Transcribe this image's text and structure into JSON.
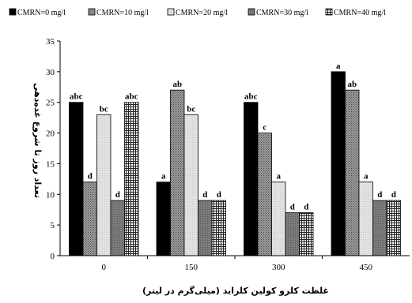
{
  "chart_data": {
    "type": "bar",
    "title": "",
    "xlabel": "غلظت کلرو کولین کلراید (میلی‌گرم در لیتر)",
    "ylabel": "تعداد روز تا شروع غده‌دهی",
    "ylim": [
      0,
      35
    ],
    "yticks": [
      "0",
      "5",
      "10",
      "15",
      "20",
      "25",
      "30",
      "35"
    ],
    "categories": [
      "0",
      "150",
      "300",
      "450"
    ],
    "legend_position": "top",
    "grid": false,
    "series": [
      {
        "name": "CMRN=0 mg/l",
        "color": "#000000",
        "pattern": "solid",
        "values": [
          25,
          12,
          25,
          30
        ],
        "labels": [
          "abc",
          "a",
          "abc",
          "a"
        ]
      },
      {
        "name": "CMRN=10 mg/l",
        "color": "#8c8c8c",
        "pattern": "dots-dark",
        "values": [
          12,
          27,
          20,
          27
        ],
        "labels": [
          "d",
          "ab",
          "c",
          "ab"
        ]
      },
      {
        "name": "CMRN=20 mg/l",
        "color": "#dcdcdc",
        "pattern": "light",
        "values": [
          23,
          23,
          12,
          12
        ],
        "labels": [
          "bc",
          "bc",
          "a",
          "a"
        ]
      },
      {
        "name": "CMRN=30 mg/l",
        "color": "#6e6e6e",
        "pattern": "dark-gray",
        "values": [
          9,
          9,
          7,
          9
        ],
        "labels": [
          "d",
          "d",
          "d",
          "d"
        ]
      },
      {
        "name": "CMRN=40 mg/l",
        "color": "#9a9a9a",
        "pattern": "grid",
        "values": [
          25,
          9,
          7,
          9
        ],
        "labels": [
          "abc",
          "d",
          "d",
          "d"
        ]
      }
    ]
  }
}
